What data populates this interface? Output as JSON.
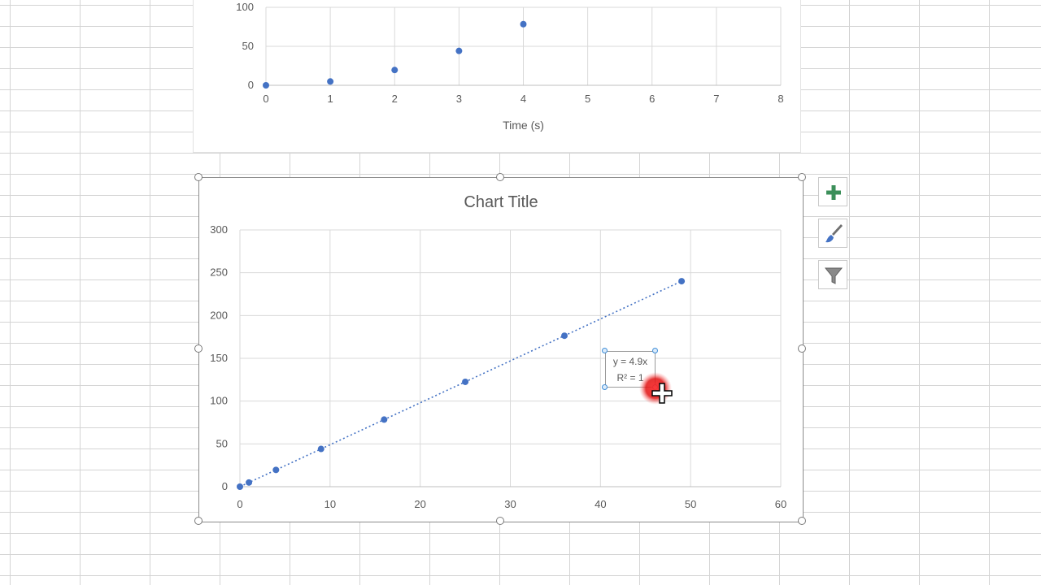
{
  "chart_data": [
    {
      "type": "scatter",
      "title": "",
      "xlabel": "Time (s)",
      "ylabel": "",
      "xlim": [
        0,
        8
      ],
      "ylim": [
        0,
        100
      ],
      "x_ticks": [
        "0",
        "1",
        "2",
        "3",
        "4",
        "5",
        "6",
        "7",
        "8"
      ],
      "y_ticks": [
        "0",
        "50",
        "100"
      ],
      "x": [
        0,
        1,
        2,
        3,
        4
      ],
      "y": [
        0,
        4.9,
        19.6,
        44.1,
        78.4
      ],
      "grid": true,
      "marker_color": "#4472c4"
    },
    {
      "type": "scatter",
      "title": "Chart Title",
      "xlabel": "",
      "ylabel": "",
      "xlim": [
        0,
        60
      ],
      "ylim": [
        0,
        300
      ],
      "x_ticks": [
        "0",
        "10",
        "20",
        "30",
        "40",
        "50",
        "60"
      ],
      "y_ticks": [
        "0",
        "50",
        "100",
        "150",
        "200",
        "250",
        "300"
      ],
      "x": [
        0,
        1,
        4,
        9,
        16,
        25,
        36,
        49
      ],
      "y": [
        0,
        4.9,
        19.6,
        44.1,
        78.4,
        122.5,
        176.4,
        240.1
      ],
      "grid": true,
      "marker_color": "#4472c4",
      "trendline": {
        "type": "linear",
        "style": "dotted",
        "slope": 4.9,
        "intercept": 0
      },
      "trendline_label": {
        "equation": "y = 4.9x",
        "r2": "R² = 1"
      }
    }
  ],
  "side_buttons": [
    {
      "name": "chart-elements",
      "icon": "plus-icon",
      "color": "#3c8f5a"
    },
    {
      "name": "chart-styles",
      "icon": "paintbrush-icon",
      "color": "#4472c4"
    },
    {
      "name": "chart-filters",
      "icon": "funnel-icon",
      "color": "#707070"
    }
  ]
}
